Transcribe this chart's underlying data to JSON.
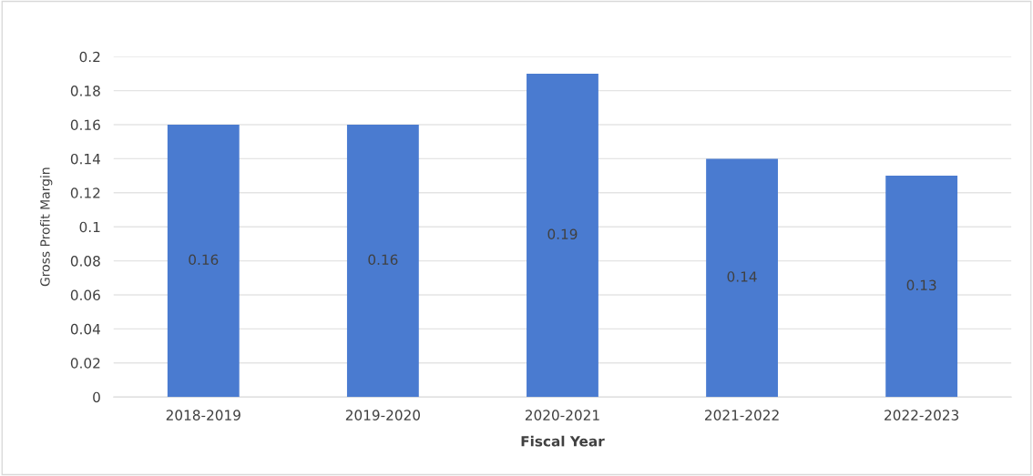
{
  "chart_data": {
    "type": "bar",
    "xlabel": "Fiscal Year",
    "ylabel": "Gross Profit Margin",
    "categories": [
      "2018-2019",
      "2019-2020",
      "2020-2021",
      "2021-2022",
      "2022-2023"
    ],
    "values": [
      0.16,
      0.16,
      0.19,
      0.14,
      0.13
    ],
    "color": "#4a7bd0",
    "ylim": [
      0,
      0.2
    ],
    "yticks": [
      0,
      0.02,
      0.04,
      0.06,
      0.08,
      0.1,
      0.12,
      0.14,
      0.16,
      0.18,
      0.2
    ],
    "grid": "y",
    "data_labels": true
  }
}
